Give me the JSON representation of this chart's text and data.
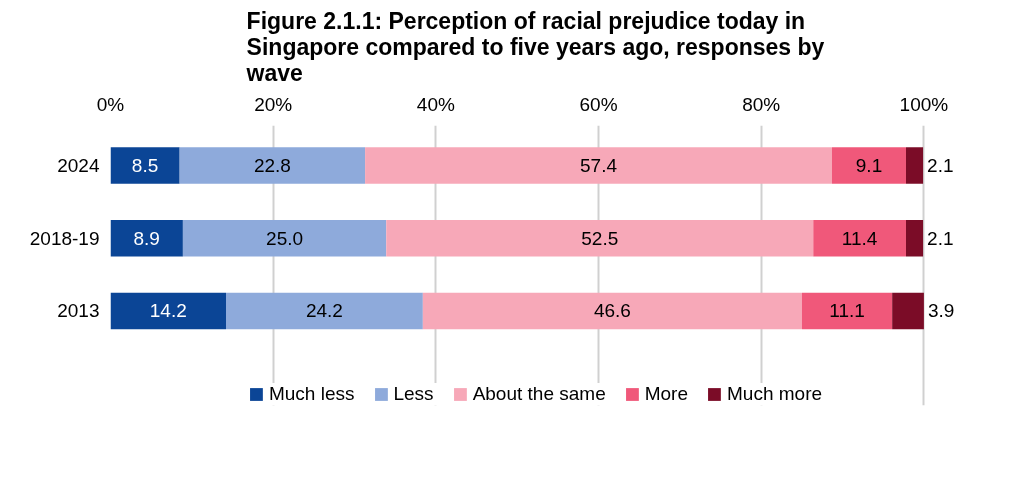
{
  "chart_data": {
    "type": "bar",
    "orientation": "horizontal",
    "stacked": true,
    "title": "Figure 2.1.1: Perception of racial prejudice today in Singapore compared to five years ago, responses by wave",
    "categories": [
      "2024",
      "2018-19",
      "2013"
    ],
    "series": [
      {
        "name": "Much less",
        "color": "#0b4596",
        "values": [
          8.5,
          8.9,
          14.2
        ],
        "value_labels": [
          "8.5",
          "8.9",
          "14.2"
        ]
      },
      {
        "name": "Less",
        "color": "#8eaadb",
        "values": [
          22.8,
          25.0,
          24.2
        ],
        "value_labels": [
          "22.8",
          "25.0",
          "24.2"
        ]
      },
      {
        "name": "About the same",
        "color": "#f7a8b8",
        "values": [
          57.4,
          52.5,
          46.6
        ],
        "value_labels": [
          "57.4",
          "52.5",
          "46.6"
        ]
      },
      {
        "name": "More",
        "color": "#f0587a",
        "values": [
          9.1,
          11.4,
          11.1
        ],
        "value_labels": [
          "9.1",
          "11.4",
          "11.1"
        ]
      },
      {
        "name": "Much more",
        "color": "#7b0c27",
        "values": [
          2.1,
          2.1,
          3.9
        ],
        "value_labels": [
          "2.1",
          "2.1",
          "3.9"
        ]
      }
    ],
    "xlim": [
      0,
      100
    ],
    "xticks": [
      {
        "value": 0,
        "label": "0%"
      },
      {
        "value": 20,
        "label": "20%"
      },
      {
        "value": 40,
        "label": "40%"
      },
      {
        "value": 60,
        "label": "60%"
      },
      {
        "value": 80,
        "label": "80%"
      },
      {
        "value": 100,
        "label": "100%"
      }
    ],
    "grid": "x",
    "legend": "bottom"
  }
}
